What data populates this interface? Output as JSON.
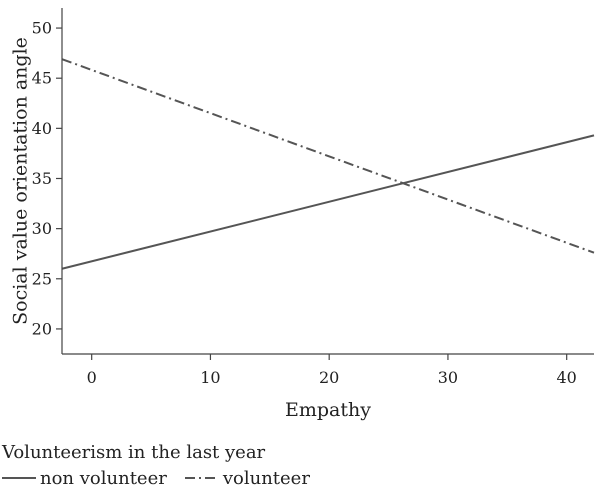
{
  "chart_data": {
    "type": "line",
    "xlabel": "Empathy",
    "ylabel": "Social value orientation angle",
    "xlim": [
      -2.5,
      42.3
    ],
    "ylim": [
      17.5,
      52
    ],
    "xticks": [
      0,
      10,
      20,
      30,
      40
    ],
    "yticks": [
      20,
      25,
      30,
      35,
      40,
      45,
      50
    ],
    "grid": false,
    "legend": {
      "title": "Volunteerism in the last year",
      "placement": "bottom"
    },
    "series": [
      {
        "name": "non volunteer",
        "linestyle": "solid",
        "color": "#555555",
        "x": [
          -2.5,
          42.3
        ],
        "y": [
          26.0,
          39.3
        ]
      },
      {
        "name": "volunteer",
        "linestyle": "dashdot",
        "color": "#555555",
        "x": [
          -2.5,
          42.3
        ],
        "y": [
          46.9,
          27.6
        ]
      }
    ]
  }
}
